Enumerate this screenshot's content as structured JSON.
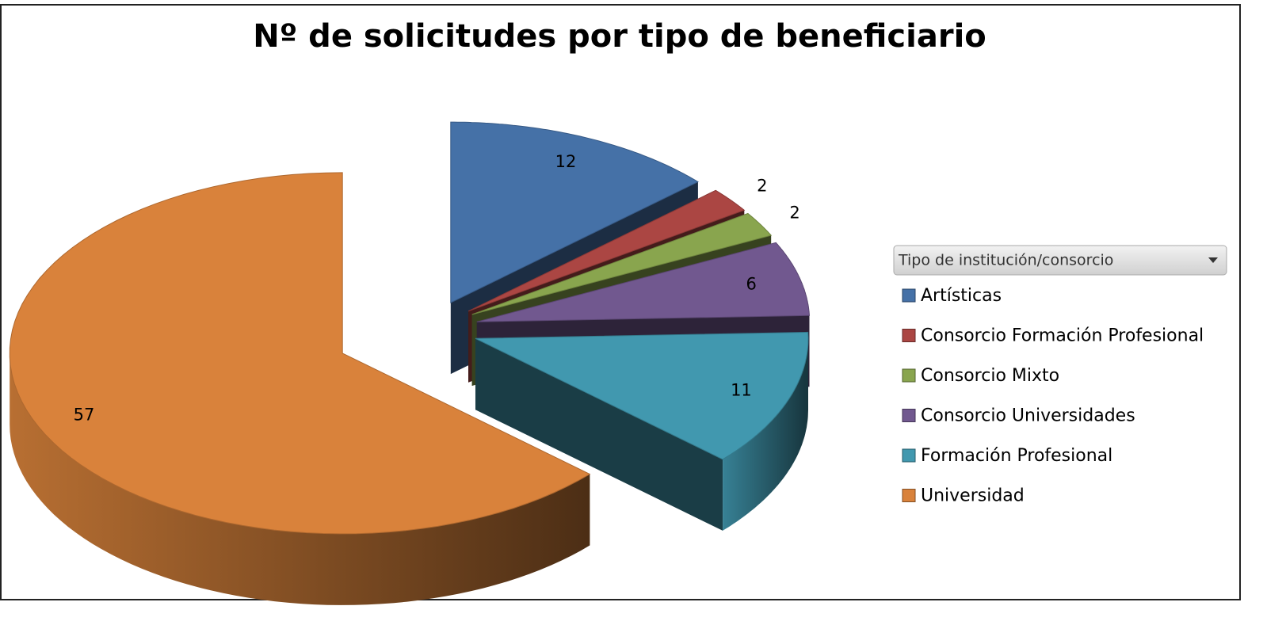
{
  "chart_data": {
    "type": "pie3d",
    "title": "Nº de solicitudes por tipo de beneficiario",
    "legend_title": "Tipo de institución/consorcio",
    "categories": [
      "Artísticas",
      "Consorcio Formación Profesional",
      "Consorcio Mixto",
      "Consorcio Universidades",
      "Formación Profesional",
      "Universidad"
    ],
    "values": [
      12,
      2,
      2,
      6,
      11,
      57
    ],
    "colors": [
      "#4571a7",
      "#ab4643",
      "#89a54e",
      "#71588f",
      "#4198af",
      "#d9823b"
    ],
    "legend": "right"
  }
}
